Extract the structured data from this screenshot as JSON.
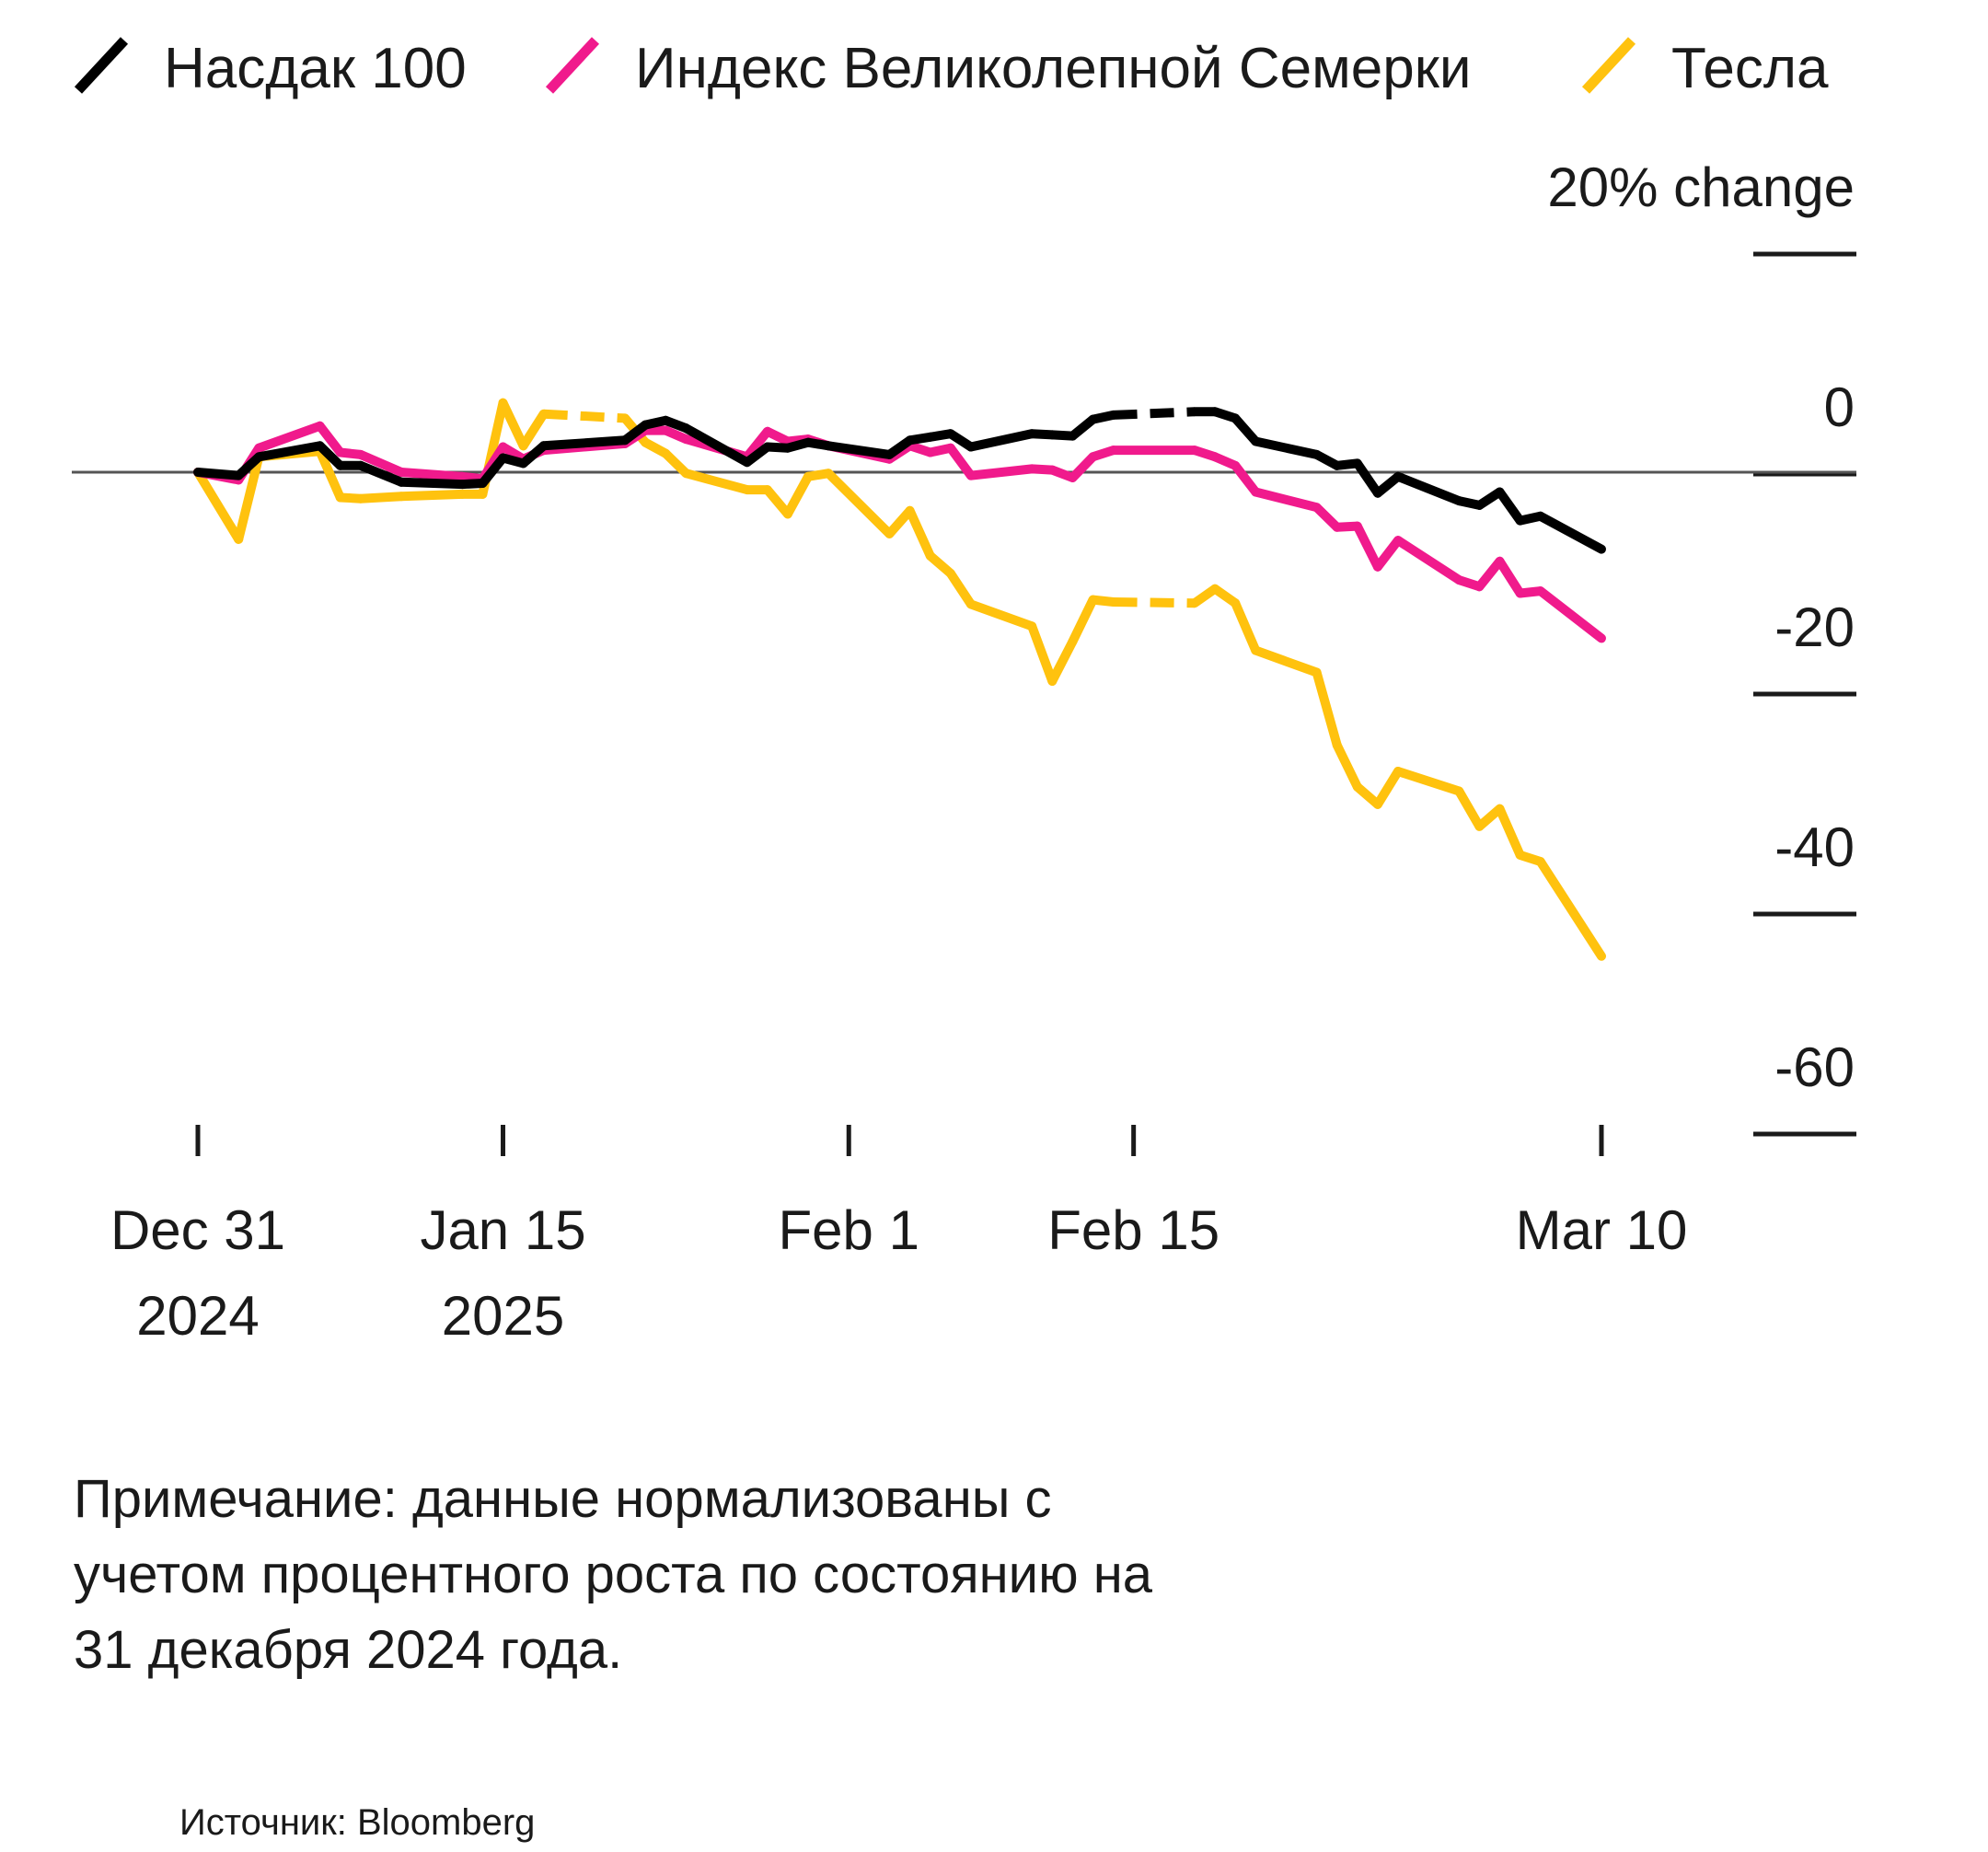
{
  "chart_data": {
    "type": "line",
    "y_unit_label": "20% change",
    "ylim": [
      -60,
      20
    ],
    "y_ticks": [
      {
        "value": 20,
        "label": "20% change"
      },
      {
        "value": 0,
        "label": "0"
      },
      {
        "value": -20,
        "label": "-20"
      },
      {
        "value": -40,
        "label": "-40"
      },
      {
        "value": -60,
        "label": "-60"
      }
    ],
    "x_ticks": [
      {
        "date": "2024-12-31",
        "line1": "Dec 31",
        "line2": "2024"
      },
      {
        "date": "2025-01-15",
        "line1": "Jan 15",
        "line2": "2025"
      },
      {
        "date": "2025-02-01",
        "line1": "Feb 1",
        "line2": ""
      },
      {
        "date": "2025-02-15",
        "line1": "Feb 15",
        "line2": ""
      },
      {
        "date": "2025-03-10",
        "line1": "Mar 10",
        "line2": ""
      }
    ],
    "xlim": [
      "2024-12-31",
      "2025-03-10"
    ],
    "grid": false,
    "legend_position": "top-left",
    "series": [
      {
        "name": "Насдак 100",
        "color": "#000000",
        "points": [
          [
            "2024-12-31",
            0.0
          ],
          [
            "2025-01-02",
            -0.3
          ],
          [
            "2025-01-03",
            1.4
          ],
          [
            "2025-01-06",
            2.4
          ],
          [
            "2025-01-07",
            0.6
          ],
          [
            "2025-01-08",
            0.6
          ],
          [
            "2025-01-10",
            -0.9
          ],
          [
            "2025-01-13",
            -1.1
          ],
          [
            "2025-01-14",
            -1.0
          ],
          [
            "2025-01-15",
            1.3
          ],
          [
            "2025-01-16",
            0.8
          ],
          [
            "2025-01-17",
            2.4
          ],
          [
            "2025-01-21",
            2.9
          ],
          [
            "2025-01-22",
            4.3
          ],
          [
            "2025-01-23",
            4.7
          ],
          [
            "2025-01-24",
            4.0
          ],
          [
            "2025-01-27",
            0.9
          ],
          [
            "2025-01-28",
            2.3
          ],
          [
            "2025-01-29",
            2.2
          ],
          [
            "2025-01-30",
            2.7
          ],
          [
            "2025-01-31",
            2.4
          ],
          [
            "2025-02-03",
            1.6
          ],
          [
            "2025-02-04",
            2.9
          ],
          [
            "2025-02-05",
            3.2
          ],
          [
            "2025-02-06",
            3.5
          ],
          [
            "2025-02-07",
            2.3
          ],
          [
            "2025-02-10",
            3.5
          ],
          [
            "2025-02-11",
            3.4
          ],
          [
            "2025-02-12",
            3.3
          ],
          [
            "2025-02-13",
            4.8
          ],
          [
            "2025-02-14",
            5.2
          ],
          [
            "2025-02-18",
            5.5
          ],
          [
            "2025-02-19",
            5.5
          ],
          [
            "2025-02-20",
            4.9
          ],
          [
            "2025-02-21",
            2.8
          ],
          [
            "2025-02-24",
            1.6
          ],
          [
            "2025-02-25",
            0.6
          ],
          [
            "2025-02-26",
            0.8
          ],
          [
            "2025-02-27",
            -1.9
          ],
          [
            "2025-02-28",
            -0.4
          ],
          [
            "2025-03-03",
            -2.6
          ],
          [
            "2025-03-04",
            -3.0
          ],
          [
            "2025-03-05",
            -1.8
          ],
          [
            "2025-03-06",
            -4.4
          ],
          [
            "2025-03-07",
            -4.0
          ],
          [
            "2025-03-10",
            -7.0
          ]
        ],
        "gaps": [
          [
            "2025-02-14",
            "2025-02-18"
          ]
        ]
      },
      {
        "name": "Индекс Великолепной Семерки",
        "color": "#f01a8c",
        "points": [
          [
            "2024-12-31",
            0.0
          ],
          [
            "2025-01-02",
            -0.7
          ],
          [
            "2025-01-03",
            2.2
          ],
          [
            "2025-01-06",
            4.2
          ],
          [
            "2025-01-07",
            1.8
          ],
          [
            "2025-01-08",
            1.6
          ],
          [
            "2025-01-10",
            0.0
          ],
          [
            "2025-01-13",
            -0.4
          ],
          [
            "2025-01-14",
            -0.6
          ],
          [
            "2025-01-15",
            2.3
          ],
          [
            "2025-01-16",
            1.2
          ],
          [
            "2025-01-17",
            2.0
          ],
          [
            "2025-01-21",
            2.6
          ],
          [
            "2025-01-22",
            3.8
          ],
          [
            "2025-01-23",
            3.8
          ],
          [
            "2025-01-24",
            3.0
          ],
          [
            "2025-01-27",
            1.4
          ],
          [
            "2025-01-28",
            3.7
          ],
          [
            "2025-01-29",
            2.8
          ],
          [
            "2025-01-30",
            3.0
          ],
          [
            "2025-01-31",
            2.4
          ],
          [
            "2025-02-03",
            1.2
          ],
          [
            "2025-02-04",
            2.4
          ],
          [
            "2025-02-05",
            1.8
          ],
          [
            "2025-02-06",
            2.2
          ],
          [
            "2025-02-07",
            -0.3
          ],
          [
            "2025-02-10",
            0.3
          ],
          [
            "2025-02-11",
            0.2
          ],
          [
            "2025-02-12",
            -0.5
          ],
          [
            "2025-02-13",
            1.4
          ],
          [
            "2025-02-14",
            2.0
          ],
          [
            "2025-02-18",
            2.0
          ],
          [
            "2025-02-19",
            1.4
          ],
          [
            "2025-02-20",
            0.6
          ],
          [
            "2025-02-21",
            -1.8
          ],
          [
            "2025-02-24",
            -3.2
          ],
          [
            "2025-02-25",
            -5.0
          ],
          [
            "2025-02-26",
            -4.9
          ],
          [
            "2025-02-27",
            -8.6
          ],
          [
            "2025-02-28",
            -6.2
          ],
          [
            "2025-03-03",
            -9.8
          ],
          [
            "2025-03-04",
            -10.4
          ],
          [
            "2025-03-05",
            -8.1
          ],
          [
            "2025-03-06",
            -11.0
          ],
          [
            "2025-03-07",
            -10.8
          ],
          [
            "2025-03-10",
            -15.1
          ]
        ]
      },
      {
        "name": "Тесла",
        "color": "#ffc20e",
        "points": [
          [
            "2024-12-31",
            0.0
          ],
          [
            "2025-01-02",
            -6.1
          ],
          [
            "2025-01-03",
            1.4
          ],
          [
            "2025-01-06",
            1.9
          ],
          [
            "2025-01-07",
            -2.3
          ],
          [
            "2025-01-08",
            -2.4
          ],
          [
            "2025-01-10",
            -2.2
          ],
          [
            "2025-01-13",
            -2.0
          ],
          [
            "2025-01-14",
            -2.0
          ],
          [
            "2025-01-15",
            6.3
          ],
          [
            "2025-01-16",
            2.4
          ],
          [
            "2025-01-17",
            5.3
          ],
          [
            "2025-01-21",
            4.9
          ],
          [
            "2025-01-22",
            2.7
          ],
          [
            "2025-01-23",
            1.7
          ],
          [
            "2025-01-24",
            -0.1
          ],
          [
            "2025-01-27",
            -1.6
          ],
          [
            "2025-01-28",
            -1.6
          ],
          [
            "2025-01-29",
            -3.8
          ],
          [
            "2025-01-30",
            -0.4
          ],
          [
            "2025-01-31",
            -0.1
          ],
          [
            "2025-02-03",
            -5.6
          ],
          [
            "2025-02-04",
            -3.5
          ],
          [
            "2025-02-05",
            -7.6
          ],
          [
            "2025-02-06",
            -9.2
          ],
          [
            "2025-02-07",
            -12.0
          ],
          [
            "2025-02-10",
            -14.0
          ],
          [
            "2025-02-11",
            -19.0
          ],
          [
            "2025-02-12",
            -15.4
          ],
          [
            "2025-02-13",
            -11.6
          ],
          [
            "2025-02-14",
            -11.8
          ],
          [
            "2025-02-18",
            -11.9
          ],
          [
            "2025-02-19",
            -10.6
          ],
          [
            "2025-02-20",
            -11.9
          ],
          [
            "2025-02-21",
            -16.2
          ],
          [
            "2025-02-24",
            -18.2
          ],
          [
            "2025-02-25",
            -24.8
          ],
          [
            "2025-02-26",
            -28.6
          ],
          [
            "2025-02-27",
            -30.2
          ],
          [
            "2025-02-28",
            -27.2
          ],
          [
            "2025-03-03",
            -29.0
          ],
          [
            "2025-03-04",
            -32.2
          ],
          [
            "2025-03-05",
            -30.6
          ],
          [
            "2025-03-06",
            -34.8
          ],
          [
            "2025-03-07",
            -35.4
          ],
          [
            "2025-03-10",
            -44.0
          ]
        ],
        "gaps": [
          [
            "2025-01-17",
            "2025-01-21"
          ],
          [
            "2025-02-14",
            "2025-02-18"
          ]
        ]
      }
    ]
  },
  "note": {
    "line1": "Примечание: данные нормализованы с",
    "line2": "учетом процентного роста по состоянию на",
    "line3": "31 декабря 2024 года."
  },
  "source": "Источник: Bloomberg"
}
